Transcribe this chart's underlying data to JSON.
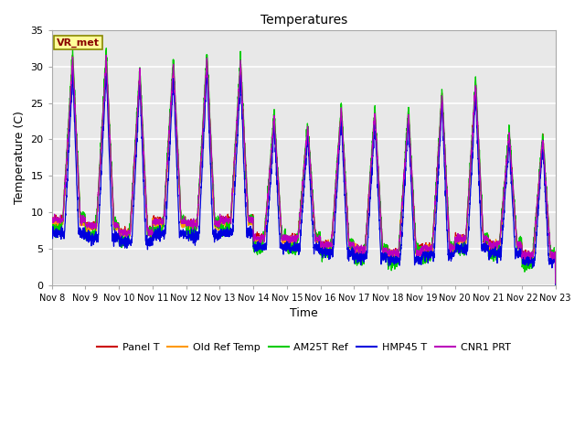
{
  "title": "Temperatures",
  "xlabel": "Time",
  "ylabel": "Temperature (C)",
  "ylim": [
    0,
    35
  ],
  "fig_bg": "#ffffff",
  "plot_bg": "#e8e8e8",
  "grid_color": "#ffffff",
  "tick_labels": [
    "Nov 8",
    "Nov 9",
    "Nov 10",
    "Nov 11",
    "Nov 12",
    "Nov 13",
    "Nov 14",
    "Nov 15",
    "Nov 16",
    "Nov 17",
    "Nov 18",
    "Nov 19",
    "Nov 20",
    "Nov 21",
    "Nov 22",
    "Nov 23"
  ],
  "series_colors": {
    "Panel T": "#cc0000",
    "Old Ref Temp": "#ff9900",
    "AM25T Ref": "#00cc00",
    "HMP45 T": "#0000dd",
    "CNR1 PRT": "#bb00bb"
  },
  "legend_entries": [
    "Panel T",
    "Old Ref Temp",
    "AM25T Ref",
    "HMP45 T",
    "CNR1 PRT"
  ],
  "annotation_text": "VR_met",
  "annotation_color": "#880000",
  "annotation_bg": "#ffff99",
  "annotation_edge": "#888800"
}
